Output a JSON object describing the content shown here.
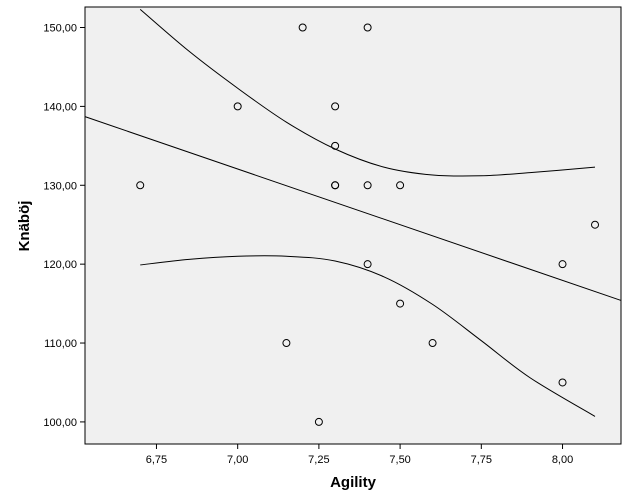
{
  "chart_data": {
    "type": "scatter",
    "title": "",
    "xlabel": "Agility",
    "ylabel": "Knäböj",
    "xlim": [
      6.53,
      8.18
    ],
    "ylim": [
      97.2,
      152.6
    ],
    "x_ticks": [
      6.75,
      7.0,
      7.25,
      7.5,
      7.75,
      8.0
    ],
    "x_tick_labels": [
      "6,75",
      "7,00",
      "7,25",
      "7,50",
      "7,75",
      "8,00"
    ],
    "y_ticks": [
      100,
      110,
      120,
      130,
      140,
      150
    ],
    "y_tick_labels": [
      "100,00",
      "110,00",
      "120,00",
      "130,00",
      "140,00",
      "150,00"
    ],
    "grid": false,
    "background": "#f0f0f0",
    "marker": "open-circle",
    "points": [
      {
        "x": 6.7,
        "y": 130
      },
      {
        "x": 7.0,
        "y": 140
      },
      {
        "x": 7.15,
        "y": 110
      },
      {
        "x": 7.2,
        "y": 150
      },
      {
        "x": 7.25,
        "y": 100
      },
      {
        "x": 7.3,
        "y": 140
      },
      {
        "x": 7.3,
        "y": 135
      },
      {
        "x": 7.3,
        "y": 130
      },
      {
        "x": 7.3,
        "y": 130
      },
      {
        "x": 7.4,
        "y": 150
      },
      {
        "x": 7.4,
        "y": 130
      },
      {
        "x": 7.4,
        "y": 120
      },
      {
        "x": 7.5,
        "y": 130
      },
      {
        "x": 7.5,
        "y": 115
      },
      {
        "x": 7.6,
        "y": 110
      },
      {
        "x": 8.0,
        "y": 120
      },
      {
        "x": 8.0,
        "y": 105
      },
      {
        "x": 8.1,
        "y": 125
      }
    ],
    "fit_line": {
      "x": [
        6.53,
        8.18
      ],
      "y": [
        138.7,
        115.4
      ]
    },
    "confidence_upper": {
      "x": [
        6.7,
        6.85,
        7.0,
        7.15,
        7.3,
        7.45,
        7.6,
        7.75,
        7.9,
        8.1
      ],
      "y": [
        152.3,
        147.0,
        142.3,
        138.0,
        134.6,
        132.3,
        131.3,
        131.2,
        131.6,
        132.3
      ]
    },
    "confidence_lower": {
      "x": [
        6.7,
        6.85,
        7.0,
        7.15,
        7.3,
        7.45,
        7.6,
        7.75,
        7.9,
        8.1
      ],
      "y": [
        119.9,
        120.6,
        121.0,
        121.0,
        120.4,
        118.4,
        114.9,
        110.3,
        105.6,
        100.7
      ]
    }
  }
}
